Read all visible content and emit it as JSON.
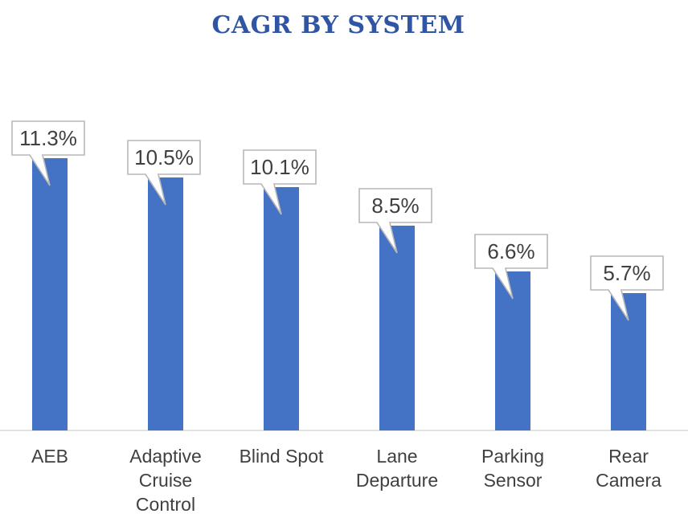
{
  "chart_data": {
    "type": "bar",
    "title": "CAGR BY SYSTEM",
    "xlabel": "",
    "ylabel": "",
    "categories": [
      "AEB",
      "Adaptive Cruise Control",
      "Blind Spot",
      "Lane Departure",
      "Parking Sensor",
      "Rear Camera"
    ],
    "category_lines": [
      [
        "AEB"
      ],
      [
        "Adaptive",
        "Cruise",
        "Control"
      ],
      [
        "Blind Spot"
      ],
      [
        "Lane",
        "Departure"
      ],
      [
        "Parking",
        "Sensor"
      ],
      [
        "Rear",
        "Camera"
      ]
    ],
    "values": [
      11.3,
      10.5,
      10.1,
      8.5,
      6.6,
      5.7
    ],
    "data_labels": [
      "11.3%",
      "10.5%",
      "10.1%",
      "8.5%",
      "6.6%",
      "5.7%"
    ],
    "ylim": [
      0,
      13.5
    ],
    "grid": false,
    "legend": "none",
    "colors": {
      "bar": "#4472c4",
      "title": "#2f55a4",
      "label_text": "#404040",
      "callout_border": "#b7b7b7"
    }
  }
}
